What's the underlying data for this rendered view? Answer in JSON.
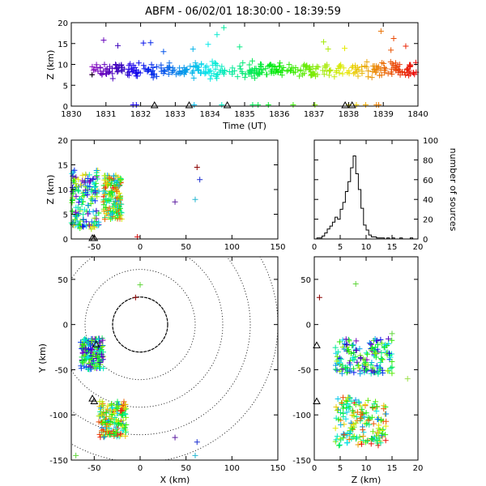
{
  "chart_data": [
    {
      "id": "time-height",
      "type": "scatter",
      "title": "ABFM - 06/02/01 18:30:00 - 18:39:59",
      "xlabel": "Time (UT)",
      "ylabel": "Z (km)",
      "xlim": [
        1830,
        1840
      ],
      "ylim": [
        0,
        20
      ],
      "xticks": [
        "1830",
        "1831",
        "1832",
        "1833",
        "1834",
        "1835",
        "1836",
        "1837",
        "1838",
        "1839",
        "1840"
      ],
      "yticks": [
        "0",
        "5",
        "10",
        "15",
        "20"
      ],
      "colormap": "time: purple → blue → cyan → green → yellow → orange → red",
      "sources": "several hundred VHF sources, Z mostly 5–12 km, scattered to 19 km",
      "station_markers_x": [
        1832.4,
        1833.4,
        1834.5,
        1837.9,
        1838.1
      ]
    },
    {
      "id": "x-height",
      "type": "scatter",
      "xlabel": "",
      "ylabel": "Z (km)",
      "xlim": [
        -75,
        150
      ],
      "ylim": [
        0,
        20
      ],
      "xticks": [
        "-50",
        "0",
        "50",
        "100",
        "150"
      ],
      "yticks": [
        "0",
        "5",
        "10",
        "15",
        "20"
      ],
      "clusters": [
        {
          "x_range": [
            -75,
            -45
          ],
          "z_range": [
            2,
            14
          ]
        },
        {
          "x_range": [
            -40,
            -20
          ],
          "z_range": [
            4,
            13
          ]
        }
      ],
      "outliers": [
        [
          62,
          14.5
        ],
        [
          65,
          12
        ],
        [
          38,
          7.5
        ],
        [
          60,
          8
        ]
      ]
    },
    {
      "id": "height-histogram",
      "type": "bar",
      "xlabel": "",
      "ylabel": "number of sources",
      "xlim": [
        0,
        20
      ],
      "ylim": [
        0,
        100
      ],
      "xticks": [
        "0",
        "5",
        "10",
        "15",
        "20"
      ],
      "yticks": [
        "0",
        "20",
        "40",
        "60",
        "80",
        "100"
      ],
      "bin_width_km": 0.5,
      "bin_centers": [
        0.25,
        0.75,
        1.25,
        1.75,
        2.25,
        2.75,
        3.25,
        3.75,
        4.25,
        4.75,
        5.25,
        5.75,
        6.25,
        6.75,
        7.25,
        7.75,
        8.25,
        8.75,
        9.25,
        9.75,
        10.25,
        10.75,
        11.25,
        11.75,
        12.25,
        12.75,
        13.25,
        13.75,
        14.25,
        14.75,
        15.25,
        15.75,
        16.25,
        16.75,
        17.25,
        17.75,
        18.25,
        18.75,
        19.25,
        19.75
      ],
      "counts": [
        0,
        1,
        1,
        3,
        6,
        10,
        13,
        17,
        22,
        20,
        30,
        37,
        48,
        58,
        72,
        84,
        66,
        50,
        31,
        14,
        9,
        4,
        2,
        2,
        1,
        1,
        1,
        0,
        1,
        0,
        1,
        0,
        0,
        1,
        0,
        0,
        0,
        1,
        0,
        0
      ]
    },
    {
      "id": "plan-view",
      "type": "scatter",
      "xlabel": "X (km)",
      "ylabel": "Y (km)",
      "xlim": [
        -75,
        150
      ],
      "ylim": [
        -150,
        75
      ],
      "xticks": [
        "-50",
        "0",
        "50",
        "100",
        "150"
      ],
      "yticks": [
        "-150",
        "-100",
        "-50",
        "0",
        "50"
      ],
      "range_rings_km": [
        30,
        60,
        90,
        120,
        150
      ],
      "clusters": [
        {
          "x_range": [
            -65,
            -40
          ],
          "y_range": [
            -50,
            -15
          ]
        },
        {
          "x_range": [
            -45,
            -15
          ],
          "y_range": [
            -125,
            -85
          ]
        }
      ],
      "outliers": [
        [
          0,
          44
        ],
        [
          -5,
          30
        ],
        [
          62,
          -130
        ],
        [
          38,
          -125
        ],
        [
          60,
          -145
        ],
        [
          -70,
          -145
        ]
      ],
      "station_markers": [
        [
          -52,
          -82
        ],
        [
          -50,
          -85
        ],
        [
          -48,
          -22
        ]
      ]
    },
    {
      "id": "height-y",
      "type": "scatter",
      "xlabel": "Z (km)",
      "ylabel": "",
      "xlim": [
        0,
        20
      ],
      "ylim": [
        -150,
        75
      ],
      "xticks": [
        "0",
        "5",
        "10",
        "15",
        "20"
      ],
      "yticks": [
        "-150",
        "-100",
        "-50",
        "0",
        "50"
      ],
      "clusters": [
        {
          "z_range": [
            4,
            15
          ],
          "y_range": [
            -55,
            -15
          ]
        },
        {
          "z_range": [
            4,
            14
          ],
          "y_range": [
            -135,
            -80
          ]
        }
      ],
      "outliers": [
        [
          8,
          45
        ],
        [
          1,
          30
        ],
        [
          15,
          -10
        ],
        [
          18,
          -60
        ]
      ],
      "station_markers": [
        [
          0,
          -23
        ],
        [
          0,
          -85
        ]
      ]
    }
  ]
}
